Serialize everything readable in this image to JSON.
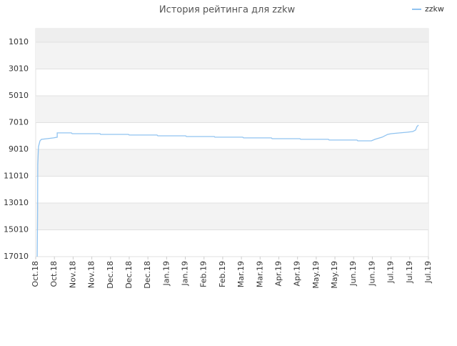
{
  "chart_data": {
    "type": "line",
    "title": "История рейтинга для zzkw",
    "series": [
      {
        "name": "zzkw",
        "color": "#90c3f0",
        "x": [
          0.08,
          0.1,
          0.11,
          0.15,
          0.23,
          0.31,
          0.61,
          0.95,
          1.15,
          1.15,
          1.91,
          1.95,
          3.44,
          3.47,
          4.96,
          5.0,
          6.49,
          6.53,
          8.02,
          8.06,
          9.55,
          9.58,
          11.07,
          11.11,
          12.6,
          12.64,
          14.13,
          14.17,
          15.65,
          15.69,
          17.18,
          17.22,
          17.95,
          18.14,
          18.52,
          18.82,
          19.01,
          19.47,
          19.85,
          20.16,
          20.31,
          20.39,
          20.47
        ],
        "values": [
          17010,
          13860,
          10130,
          8800,
          8370,
          8260,
          8210,
          8150,
          8100,
          7780,
          7780,
          7840,
          7840,
          7890,
          7890,
          7940,
          7940,
          8000,
          8000,
          8050,
          8050,
          8100,
          8100,
          8150,
          8150,
          8210,
          8210,
          8260,
          8260,
          8310,
          8310,
          8370,
          8370,
          8260,
          8100,
          7890,
          7840,
          7780,
          7730,
          7680,
          7570,
          7300,
          7200
        ]
      }
    ],
    "ylim": [
      17010,
      0
    ],
    "yticks": [
      1010,
      3010,
      5010,
      7010,
      9010,
      11010,
      13010,
      15010,
      17010
    ],
    "xlim": [
      0,
      21
    ],
    "xticks": [
      {
        "value": 0,
        "label": "Oct.18"
      },
      {
        "value": 1,
        "label": "Oct.18"
      },
      {
        "value": 2,
        "label": "Nov.18"
      },
      {
        "value": 3,
        "label": "Nov.18"
      },
      {
        "value": 4,
        "label": "Dec.18"
      },
      {
        "value": 5,
        "label": "Dec.18"
      },
      {
        "value": 6,
        "label": "Dec.18"
      },
      {
        "value": 7,
        "label": "Jan.19"
      },
      {
        "value": 8,
        "label": "Jan.19"
      },
      {
        "value": 9,
        "label": "Feb.19"
      },
      {
        "value": 10,
        "label": "Feb.19"
      },
      {
        "value": 11,
        "label": "Mar.19"
      },
      {
        "value": 12,
        "label": "Mar.19"
      },
      {
        "value": 13,
        "label": "Apr.19"
      },
      {
        "value": 14,
        "label": "Apr.19"
      },
      {
        "value": 15,
        "label": "May.19"
      },
      {
        "value": 16,
        "label": "May.19"
      },
      {
        "value": 17,
        "label": "Jun.19"
      },
      {
        "value": 18,
        "label": "Jun.19"
      },
      {
        "value": 19,
        "label": "Jul.19"
      },
      {
        "value": 20,
        "label": "Jul.19"
      },
      {
        "value": 21,
        "label": "Jul.19"
      }
    ],
    "grid": true
  }
}
